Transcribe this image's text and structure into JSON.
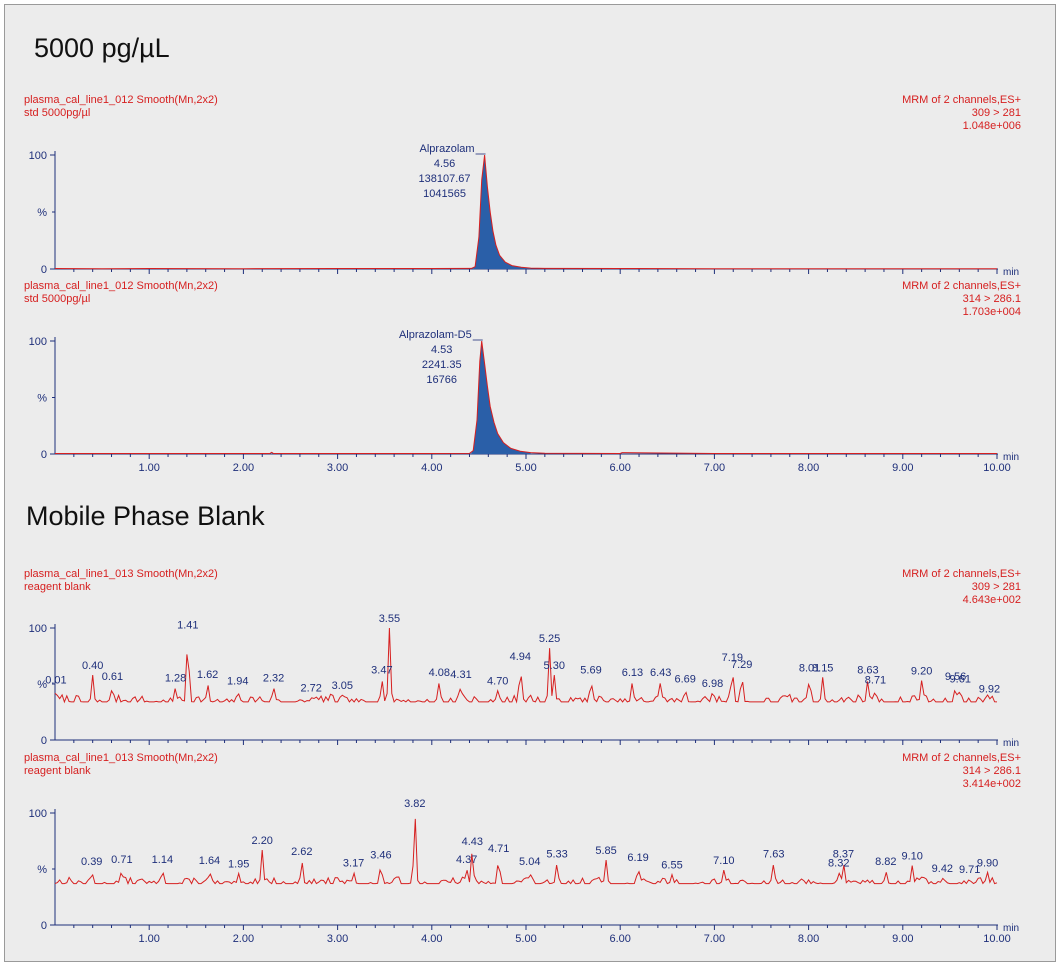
{
  "headings": {
    "top": "5000 pg/µL",
    "bottom": "Mobile Phase Blank"
  },
  "colors": {
    "background": "#ececec",
    "trace": "#d62020",
    "peak_fill": "#2a5fa8",
    "axis_text": "#1e2f7a",
    "info_text": "#d62020",
    "heading_text": "#111111"
  },
  "axis": {
    "x_unit": "min",
    "y_unit": "%",
    "x_tick_labels": [
      "1.00",
      "2.00",
      "3.00",
      "4.00",
      "5.00",
      "6.00",
      "7.00",
      "8.00",
      "9.00",
      "10.00"
    ],
    "y_tick_labels": [
      "0",
      "100"
    ]
  },
  "chart_data": [
    {
      "type": "line",
      "title_left": [
        "plasma_cal_line1_012  Smooth(Mn,2x2)",
        "std 5000pg/µl"
      ],
      "title_right": [
        "MRM of 2 channels,ES+",
        "309 > 281",
        "1.048e+006"
      ],
      "xlim": [
        0.0,
        10.0
      ],
      "ylim": [
        0,
        100
      ],
      "x_tick_labels_shown": false,
      "series": [
        {
          "x": [
            0.0,
            0.5,
            1.0,
            2.0,
            3.0,
            4.0,
            4.42,
            4.46,
            4.5,
            4.53,
            4.56,
            4.59,
            4.62,
            4.65,
            4.68,
            4.72,
            4.78,
            4.85,
            4.95,
            5.05,
            5.2,
            6.0,
            7.0,
            8.0,
            9.0,
            10.0
          ],
          "y": [
            0.4,
            0.3,
            0.4,
            0.3,
            0.4,
            0.4,
            0.5,
            2,
            28,
            78,
            100,
            72,
            50,
            33,
            21,
            12,
            6,
            3,
            1.5,
            0.8,
            0.5,
            0.4,
            0.3,
            0.3,
            0.3,
            0.3
          ]
        }
      ],
      "fill_range": [
        4.44,
        5.05
      ],
      "peak_label": {
        "x": 4.56,
        "lines": [
          "Alprazolam",
          "4.56",
          "138107.67",
          "1041565"
        ]
      }
    },
    {
      "type": "line",
      "title_left": [
        "plasma_cal_line1_012  Smooth(Mn,2x2)",
        "std 5000pg/µl"
      ],
      "title_right": [
        "MRM of 2 channels,ES+",
        "314 > 286.1",
        "1.703e+004"
      ],
      "xlim": [
        0.0,
        10.0
      ],
      "ylim": [
        0,
        100
      ],
      "x_tick_labels_shown": true,
      "series": [
        {
          "x": [
            0.0,
            0.5,
            1.0,
            2.0,
            2.28,
            2.3,
            2.32,
            3.0,
            4.0,
            4.4,
            4.44,
            4.48,
            4.51,
            4.53,
            4.56,
            4.59,
            4.62,
            4.66,
            4.7,
            4.76,
            4.84,
            4.94,
            5.05,
            5.2,
            6.0,
            6.02,
            7.0,
            8.0,
            9.0,
            10.0
          ],
          "y": [
            0.4,
            0.4,
            0.4,
            0.4,
            0.4,
            1.5,
            0.4,
            0.4,
            0.4,
            0.5,
            3,
            30,
            82,
            100,
            80,
            60,
            42,
            28,
            18,
            10,
            5,
            2.5,
            1.2,
            0.6,
            0.4,
            1.2,
            0.4,
            0.4,
            0.4,
            0.4
          ]
        }
      ],
      "fill_range": [
        4.42,
        5.05
      ],
      "peak_label": {
        "x": 4.53,
        "lines": [
          "Alprazolam-D5",
          "4.53",
          "2241.35",
          "16766"
        ]
      }
    },
    {
      "type": "line",
      "title_left": [
        "plasma_cal_line1_013  Smooth(Mn,2x2)",
        "reagent blank"
      ],
      "title_right": [
        "MRM of 2 channels,ES+",
        "309 > 281",
        "4.643e+002"
      ],
      "xlim": [
        0.0,
        10.0
      ],
      "ylim": [
        0,
        100
      ],
      "x_tick_labels_shown": false,
      "baseline": 34,
      "amplitude": 5,
      "seed": 7,
      "series": [
        {
          "x": [
            0.01,
            0.4,
            0.61,
            1.28,
            1.41,
            1.62,
            1.94,
            2.32,
            2.72,
            3.05,
            3.47,
            3.55,
            4.08,
            4.31,
            4.7,
            4.94,
            5.25,
            5.3,
            5.69,
            6.13,
            6.43,
            6.69,
            6.98,
            7.19,
            7.29,
            8.01,
            8.15,
            8.63,
            8.71,
            9.2,
            9.56,
            9.61,
            9.92
          ],
          "y": [
            45,
            58,
            48,
            47,
            94,
            50,
            44,
            47,
            38,
            40,
            54,
            100,
            52,
            50,
            44,
            66,
            82,
            58,
            54,
            52,
            52,
            46,
            42,
            65,
            59,
            56,
            56,
            54,
            45,
            53,
            48,
            46,
            37
          ]
        }
      ],
      "peak_labels": [
        "0.01",
        "0.40",
        "0.61",
        "1.28",
        "1.41",
        "1.62",
        "1.94",
        "2.32",
        "2.72",
        "3.05",
        "3.47",
        "3.55",
        "4.08",
        "4.31",
        "4.70",
        "4.94",
        "5.25",
        "5.30",
        "5.69",
        "6.13",
        "6.43",
        "6.69",
        "6.98",
        "7.19",
        "7.29",
        "8.01",
        "8.15",
        "8.63",
        "8.71",
        "9.20",
        "9.56",
        "9.61",
        "9.92"
      ]
    },
    {
      "type": "line",
      "title_left": [
        "plasma_cal_line1_013  Smooth(Mn,2x2)",
        "reagent blank"
      ],
      "title_right": [
        "MRM of 2 channels,ES+",
        "314 > 286.1",
        "3.414e+002"
      ],
      "xlim": [
        0.0,
        10.0
      ],
      "ylim": [
        0,
        100
      ],
      "x_tick_labels_shown": true,
      "baseline": 37,
      "amplitude": 4,
      "seed": 13,
      "series": [
        {
          "x": [
            0.39,
            0.71,
            1.14,
            1.64,
            1.95,
            2.2,
            2.62,
            3.17,
            3.46,
            3.82,
            4.37,
            4.43,
            4.71,
            5.04,
            5.33,
            5.85,
            6.19,
            6.55,
            7.1,
            7.63,
            8.32,
            8.37,
            8.82,
            9.1,
            9.42,
            9.71,
            9.9
          ],
          "y": [
            48,
            50,
            50,
            49,
            46,
            67,
            57,
            47,
            54,
            100,
            50,
            66,
            60,
            48,
            55,
            58,
            52,
            45,
            49,
            55,
            47,
            55,
            48,
            53,
            42,
            41,
            47
          ]
        }
      ],
      "peak_labels": [
        "0.39",
        "0.71",
        "1.14",
        "1.64",
        "1.95",
        "2.20",
        "2.62",
        "3.17",
        "3.46",
        "3.82",
        "4.37",
        "4.43",
        "4.71",
        "5.04",
        "5.33",
        "5.85",
        "6.19",
        "6.55",
        "7.10",
        "7.63",
        "8.32",
        "8.37",
        "8.82",
        "9.10",
        "9.42",
        "9.71",
        "9.90"
      ]
    }
  ]
}
